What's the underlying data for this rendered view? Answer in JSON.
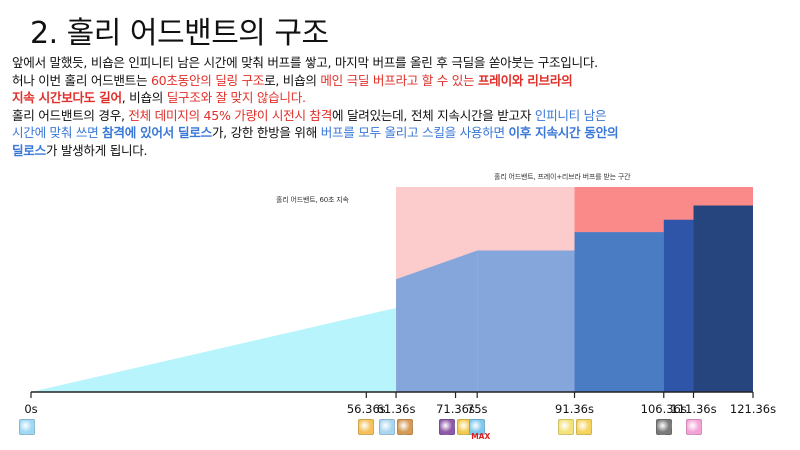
{
  "title": "2. 홀리 어드밴트의 구조",
  "paragraph": {
    "l1": "앞에서 말했듯, 비숍은 인피니티 남은 시간에 맞춰 버프를 쌓고, 마지막 버프를 올린 후 극딜을 쏟아붓는 구조입니다.",
    "l2a": "허나 이번 홀리 어드밴트는 ",
    "l2b": "60초동안의 딜링 구조",
    "l2c": "로, 비숍의 ",
    "l2d": "메인 극딜 버프라고 할 수 있는 ",
    "l2e": "프레이와 리브라의",
    "l3a": "지속 시간보다도 길어",
    "l3b": ", 비숍의 ",
    "l3c": "딜구조와 잘 맞지 않습니다.",
    "l4a": "홀리 어드밴트의 경우, ",
    "l4b": "전체 데미지의 45% 가량이 시전시 참격",
    "l4c": "에 달려있는데, 전체 지속시간을 받고자 ",
    "l4d": "인피니티 남은",
    "l5a": "시간에 맞춰 쓰면 ",
    "l5b": "참격에 있어서 딜로스",
    "l5c": "가, 강한 한방을 위해 ",
    "l5d": "버프를 모두 올리고 스킬을 사용하면 ",
    "l5e": "이후 지속시간 동안의",
    "l6a": "딜로스",
    "l6b": "가 발생하게 됩니다."
  },
  "annotations": {
    "holy_advent": "홀리 어드밴트, 60초 지속",
    "pray_libra": "홀리 어드밴트, 프레이+리브라 버프를 받는 구간"
  },
  "max_label": "MAX",
  "colors": {
    "light_blue": "#b8f4fb",
    "mid_blue": "#85a6db",
    "blue": "#4a7cc4",
    "dark_blue": "#2f55a8",
    "navy": "#26457f",
    "pink": "#fccbcb",
    "salmon": "#fa8a8a",
    "accent_red": "#e0302a",
    "accent_blue": "#3a78d8"
  },
  "chart_data": {
    "type": "area",
    "x_unit": "s",
    "ticks": [
      {
        "t": 0,
        "label": "0s",
        "icons": [
          "infinity-skill-icon"
        ]
      },
      {
        "t": 56.36,
        "label": "56.36s",
        "icons": [
          "buff-skill-icon"
        ]
      },
      {
        "t": 61.36,
        "label": "61.36s",
        "icons": [
          "holy-advent-icon",
          "summon-icon"
        ]
      },
      {
        "t": 71.36,
        "label": "71.36s",
        "icons": [
          "purple-buff-icon",
          "gold-buff-icon"
        ]
      },
      {
        "t": 75,
        "label": "75s",
        "icons": [
          "infinity-max-icon"
        ]
      },
      {
        "t": 91.36,
        "label": "91.36s",
        "icons": [
          "pray-icon",
          "libra-icon"
        ]
      },
      {
        "t": 106.36,
        "label": "106.36s",
        "icons": [
          "bell-icon"
        ]
      },
      {
        "t": 111.36,
        "label": "111.36s",
        "icons": [
          "pink-buff-icon"
        ]
      },
      {
        "t": 121.36,
        "label": "121.36s",
        "icons": []
      }
    ],
    "xlim": [
      0,
      121.36
    ],
    "ylim": [
      0,
      1
    ],
    "infinity_ramp": [
      {
        "x": 0,
        "y": 0
      },
      {
        "x": 61.36,
        "y": 0.41
      }
    ],
    "dps_steps": [
      {
        "x0": 61.36,
        "x1": 75,
        "y0": 0.55,
        "y1": 0.69,
        "color": "mid_blue"
      },
      {
        "x0": 75,
        "x1": 91.36,
        "y0": 0.69,
        "y1": 0.69,
        "color": "mid_blue"
      },
      {
        "x0": 91.36,
        "x1": 106.36,
        "y0": 0.78,
        "y1": 0.78,
        "color": "blue"
      },
      {
        "x0": 106.36,
        "x1": 111.36,
        "y0": 0.84,
        "y1": 0.84,
        "color": "dark_blue"
      },
      {
        "x0": 111.36,
        "x1": 121.36,
        "y0": 0.91,
        "y1": 0.91,
        "color": "navy"
      }
    ],
    "regions": [
      {
        "x0": 61.36,
        "x1": 121.36,
        "name": "holy_advent",
        "color": "pink"
      },
      {
        "x0": 91.36,
        "x1": 121.36,
        "name": "pray_libra",
        "color": "salmon"
      }
    ]
  }
}
